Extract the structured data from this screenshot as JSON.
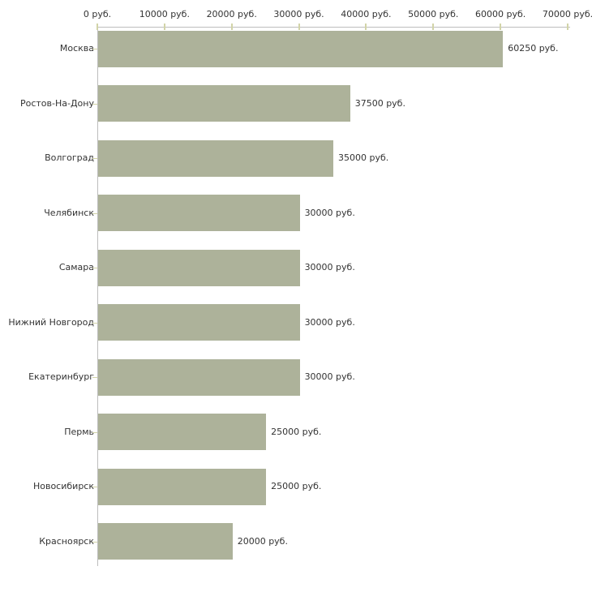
{
  "chart_data": {
    "type": "bar",
    "orientation": "horizontal",
    "title": "",
    "categories": [
      "Москва",
      "Ростов-На-Дону",
      "Волгоград",
      "Челябинск",
      "Самара",
      "Нижний Новгород",
      "Екатеринбург",
      "Пермь",
      "Новосибирск",
      "Красноярск"
    ],
    "values": [
      60250,
      37500,
      35000,
      30000,
      30000,
      30000,
      30000,
      25000,
      25000,
      20000
    ],
    "value_labels": [
      "60250 руб.",
      "37500 руб.",
      "35000 руб.",
      "30000 руб.",
      "30000 руб.",
      "30000 руб.",
      "30000 руб.",
      "25000 руб.",
      "25000 руб.",
      "20000 руб."
    ],
    "xlabel": "",
    "ylabel": "",
    "xlim": [
      0,
      70000
    ],
    "x_ticks": [
      0,
      10000,
      20000,
      30000,
      40000,
      50000,
      60000,
      70000
    ],
    "x_tick_labels": [
      "0 руб.",
      "10000 руб.",
      "20000 руб.",
      "30000 руб.",
      "40000 руб.",
      "50000 руб.",
      "60000 руб.",
      "70000 руб."
    ],
    "axis_position": "top",
    "grid": false,
    "legend": false,
    "colors": {
      "bar": "#adb29a",
      "axis_line": "#bdbdbd",
      "tick": "#d2d4a8",
      "text": "#333333",
      "background": "#ffffff"
    }
  }
}
